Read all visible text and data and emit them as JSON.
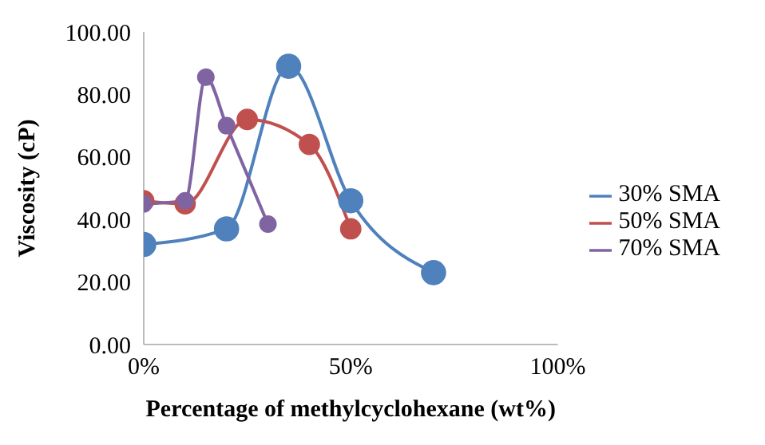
{
  "chart_data": {
    "type": "line",
    "xlabel": "Percentage of methylcyclohexane (wt%)",
    "ylabel": "Viscosity (cP)",
    "xlim": [
      0,
      100
    ],
    "xticks": [
      {
        "value": 0,
        "label": "0%"
      },
      {
        "value": 50,
        "label": "50%"
      },
      {
        "value": 100,
        "label": "100%"
      }
    ],
    "ylim": [
      0,
      100
    ],
    "yticks": [
      {
        "value": 0,
        "label": "0.00"
      },
      {
        "value": 20,
        "label": "20.00"
      },
      {
        "value": 40,
        "label": "40.00"
      },
      {
        "value": 60,
        "label": "60.00"
      },
      {
        "value": 80,
        "label": "80.00"
      },
      {
        "value": 100,
        "label": "100.00"
      }
    ],
    "grid": false,
    "legend": "right",
    "marker": "circle",
    "series": [
      {
        "name": "30% SMA",
        "color": "#4f81bd",
        "x": [
          0,
          20,
          35,
          50,
          70
        ],
        "values": [
          32,
          37,
          89,
          46,
          23
        ]
      },
      {
        "name": "50% SMA",
        "color": "#c0504d",
        "x": [
          0,
          10,
          25,
          40,
          50
        ],
        "values": [
          46,
          45,
          72,
          64,
          37
        ]
      },
      {
        "name": "70% SMA",
        "color": "#8064a2",
        "x": [
          0,
          10,
          15,
          20,
          30
        ],
        "values": [
          45,
          46,
          85.5,
          70,
          38.5
        ]
      }
    ]
  }
}
